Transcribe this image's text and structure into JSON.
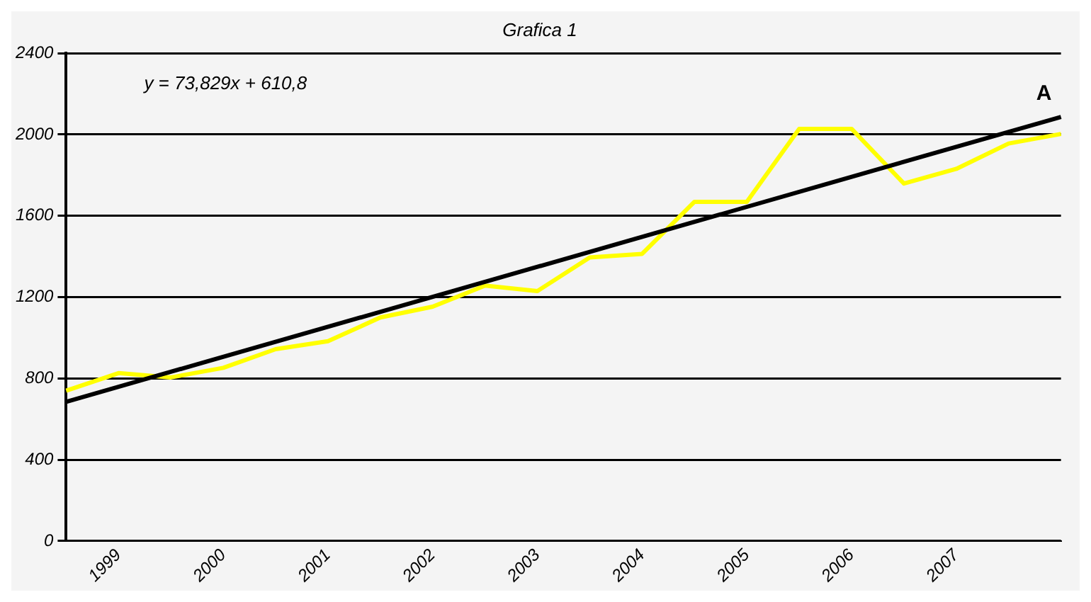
{
  "chart_data": {
    "type": "line",
    "title": "Grafica 1",
    "categories": [
      null,
      "1999",
      null,
      "2000",
      null,
      "2001",
      null,
      "2002",
      null,
      "2003",
      null,
      "2004",
      null,
      "2005",
      null,
      "2006",
      null,
      "2007",
      null,
      null
    ],
    "series": [
      {
        "color": "#ffff00",
        "values": [
          740,
          826,
          805,
          852,
          944,
          983,
          1100,
          1153,
          1257,
          1230,
          1395,
          1413,
          1669,
          1669,
          2028,
          2028,
          1759,
          1831,
          1956,
          2003
        ]
      },
      {
        "name": "A",
        "color": "#000000",
        "values": [
          685,
          null,
          null,
          null,
          null,
          null,
          null,
          null,
          null,
          null,
          null,
          null,
          null,
          null,
          null,
          null,
          null,
          null,
          null,
          2087
        ]
      }
    ],
    "ylim": [
      0,
      2400
    ],
    "yticks": [
      0,
      400,
      800,
      1200,
      1600,
      2000,
      2400
    ],
    "grid": "y",
    "legend": false,
    "marker": "none",
    "line_style": "solid",
    "annotations": [
      "y = 73,829x + 610,8"
    ]
  }
}
